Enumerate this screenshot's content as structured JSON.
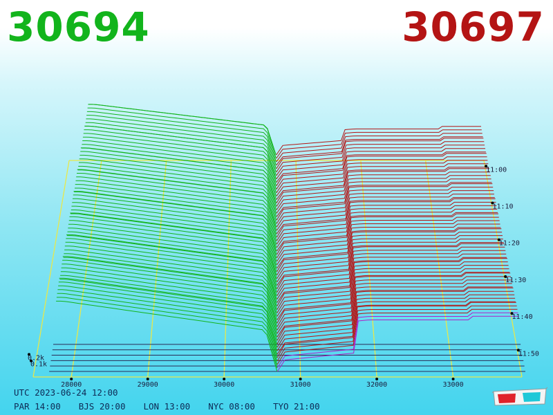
{
  "header": {
    "bid_price": "30694",
    "ask_price": "30697"
  },
  "colors": {
    "bid": "#12b41c",
    "ask": "#b41414",
    "grid": "#e8e84a",
    "baseline": "#b020c8"
  },
  "chart_data": {
    "type": "area",
    "style": "3d-waterfall order book depth",
    "x_axis": {
      "ticks": [
        "28000",
        "29000",
        "30000",
        "31000",
        "32000",
        "33000"
      ]
    },
    "depth_axis": {
      "ticks": [
        "0.1k",
        "0.2k"
      ]
    },
    "time_axis": {
      "ticks": [
        "11:00",
        "11:10",
        "11:20",
        "11:30",
        "11:40",
        "11:50"
      ]
    },
    "bid_price": 30694,
    "ask_price": 30697,
    "bid_series_depth_k": [
      0.41,
      0.38,
      0.36,
      0.34,
      0.33,
      0.32,
      0.31,
      0.3,
      0.29,
      0.28,
      0.27,
      0.26,
      0.25,
      0.24
    ],
    "ask_series_depth_k": [
      0.2,
      0.22,
      0.25,
      0.28,
      0.31,
      0.33,
      0.35,
      0.37,
      0.38,
      0.39,
      0.4,
      0.41,
      0.42,
      0.43
    ]
  },
  "footer": {
    "utc_time": "UTC 2023-06-24 12:00",
    "zones": [
      "PAR 14:00",
      "BJS 20:00",
      "LON 13:00",
      "NYC 08:00",
      "TYO 21:00"
    ]
  },
  "icons": {
    "glasses": "3d-glasses-icon"
  }
}
